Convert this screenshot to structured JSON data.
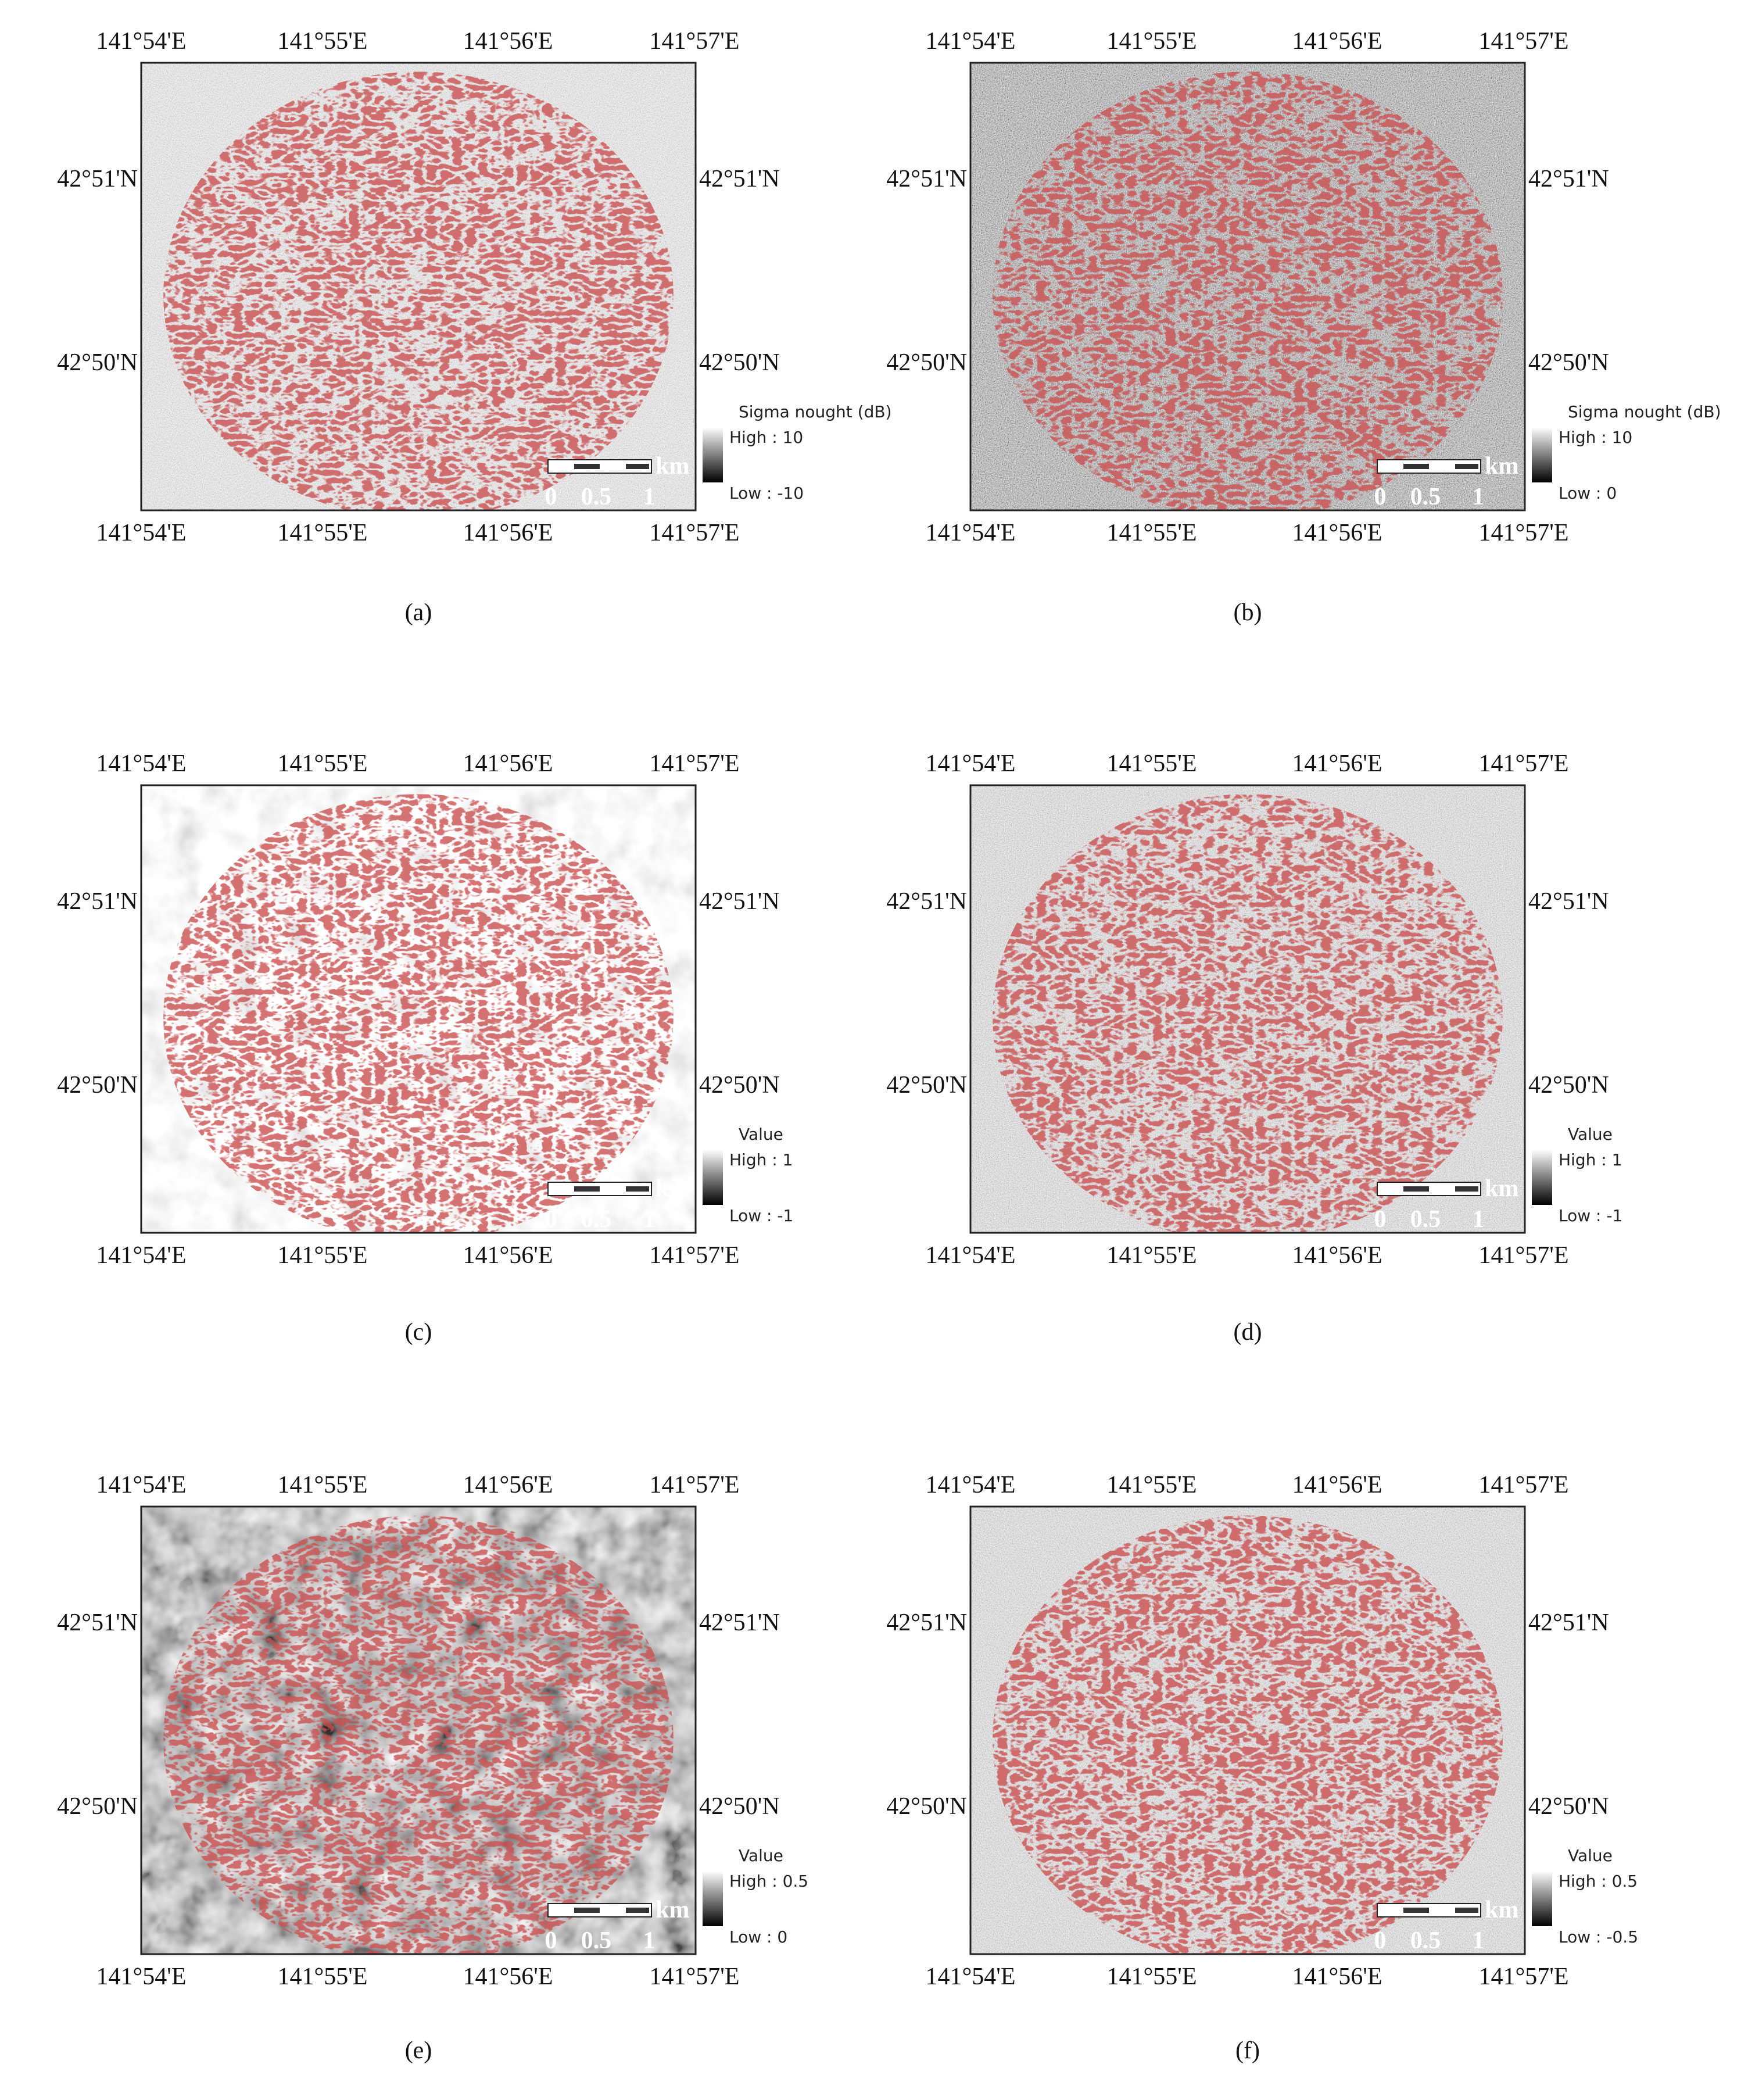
{
  "axes": {
    "lon_ticks": [
      "141°54'E",
      "141°55'E",
      "141°56'E",
      "141°57'E"
    ],
    "lat_ticks": [
      "42°51'N",
      "42°50'N"
    ]
  },
  "scale_bar": {
    "unit": "km",
    "labels": [
      "0",
      "0.5",
      "1"
    ]
  },
  "panels": [
    {
      "label": "(a)",
      "legend": {
        "title": "Sigma nought (dB)",
        "high": "High : 10",
        "low": "Low : -10"
      }
    },
    {
      "label": "(b)",
      "legend": {
        "title": "Sigma nought (dB)",
        "high": "High : 10",
        "low": "Low : 0"
      }
    },
    {
      "label": "(c)",
      "legend": {
        "title": "Value",
        "high": "High : 1",
        "low": "Low : -1"
      }
    },
    {
      "label": "(d)",
      "legend": {
        "title": "Value",
        "high": "High : 1",
        "low": "Low : -1"
      }
    },
    {
      "label": "(e)",
      "legend": {
        "title": "Value",
        "high": "High : 0.5",
        "low": "Low : 0"
      }
    },
    {
      "label": "(f)",
      "legend": {
        "title": "Value",
        "high": "High : 0.5",
        "low": "Low : -0.5"
      }
    }
  ]
}
